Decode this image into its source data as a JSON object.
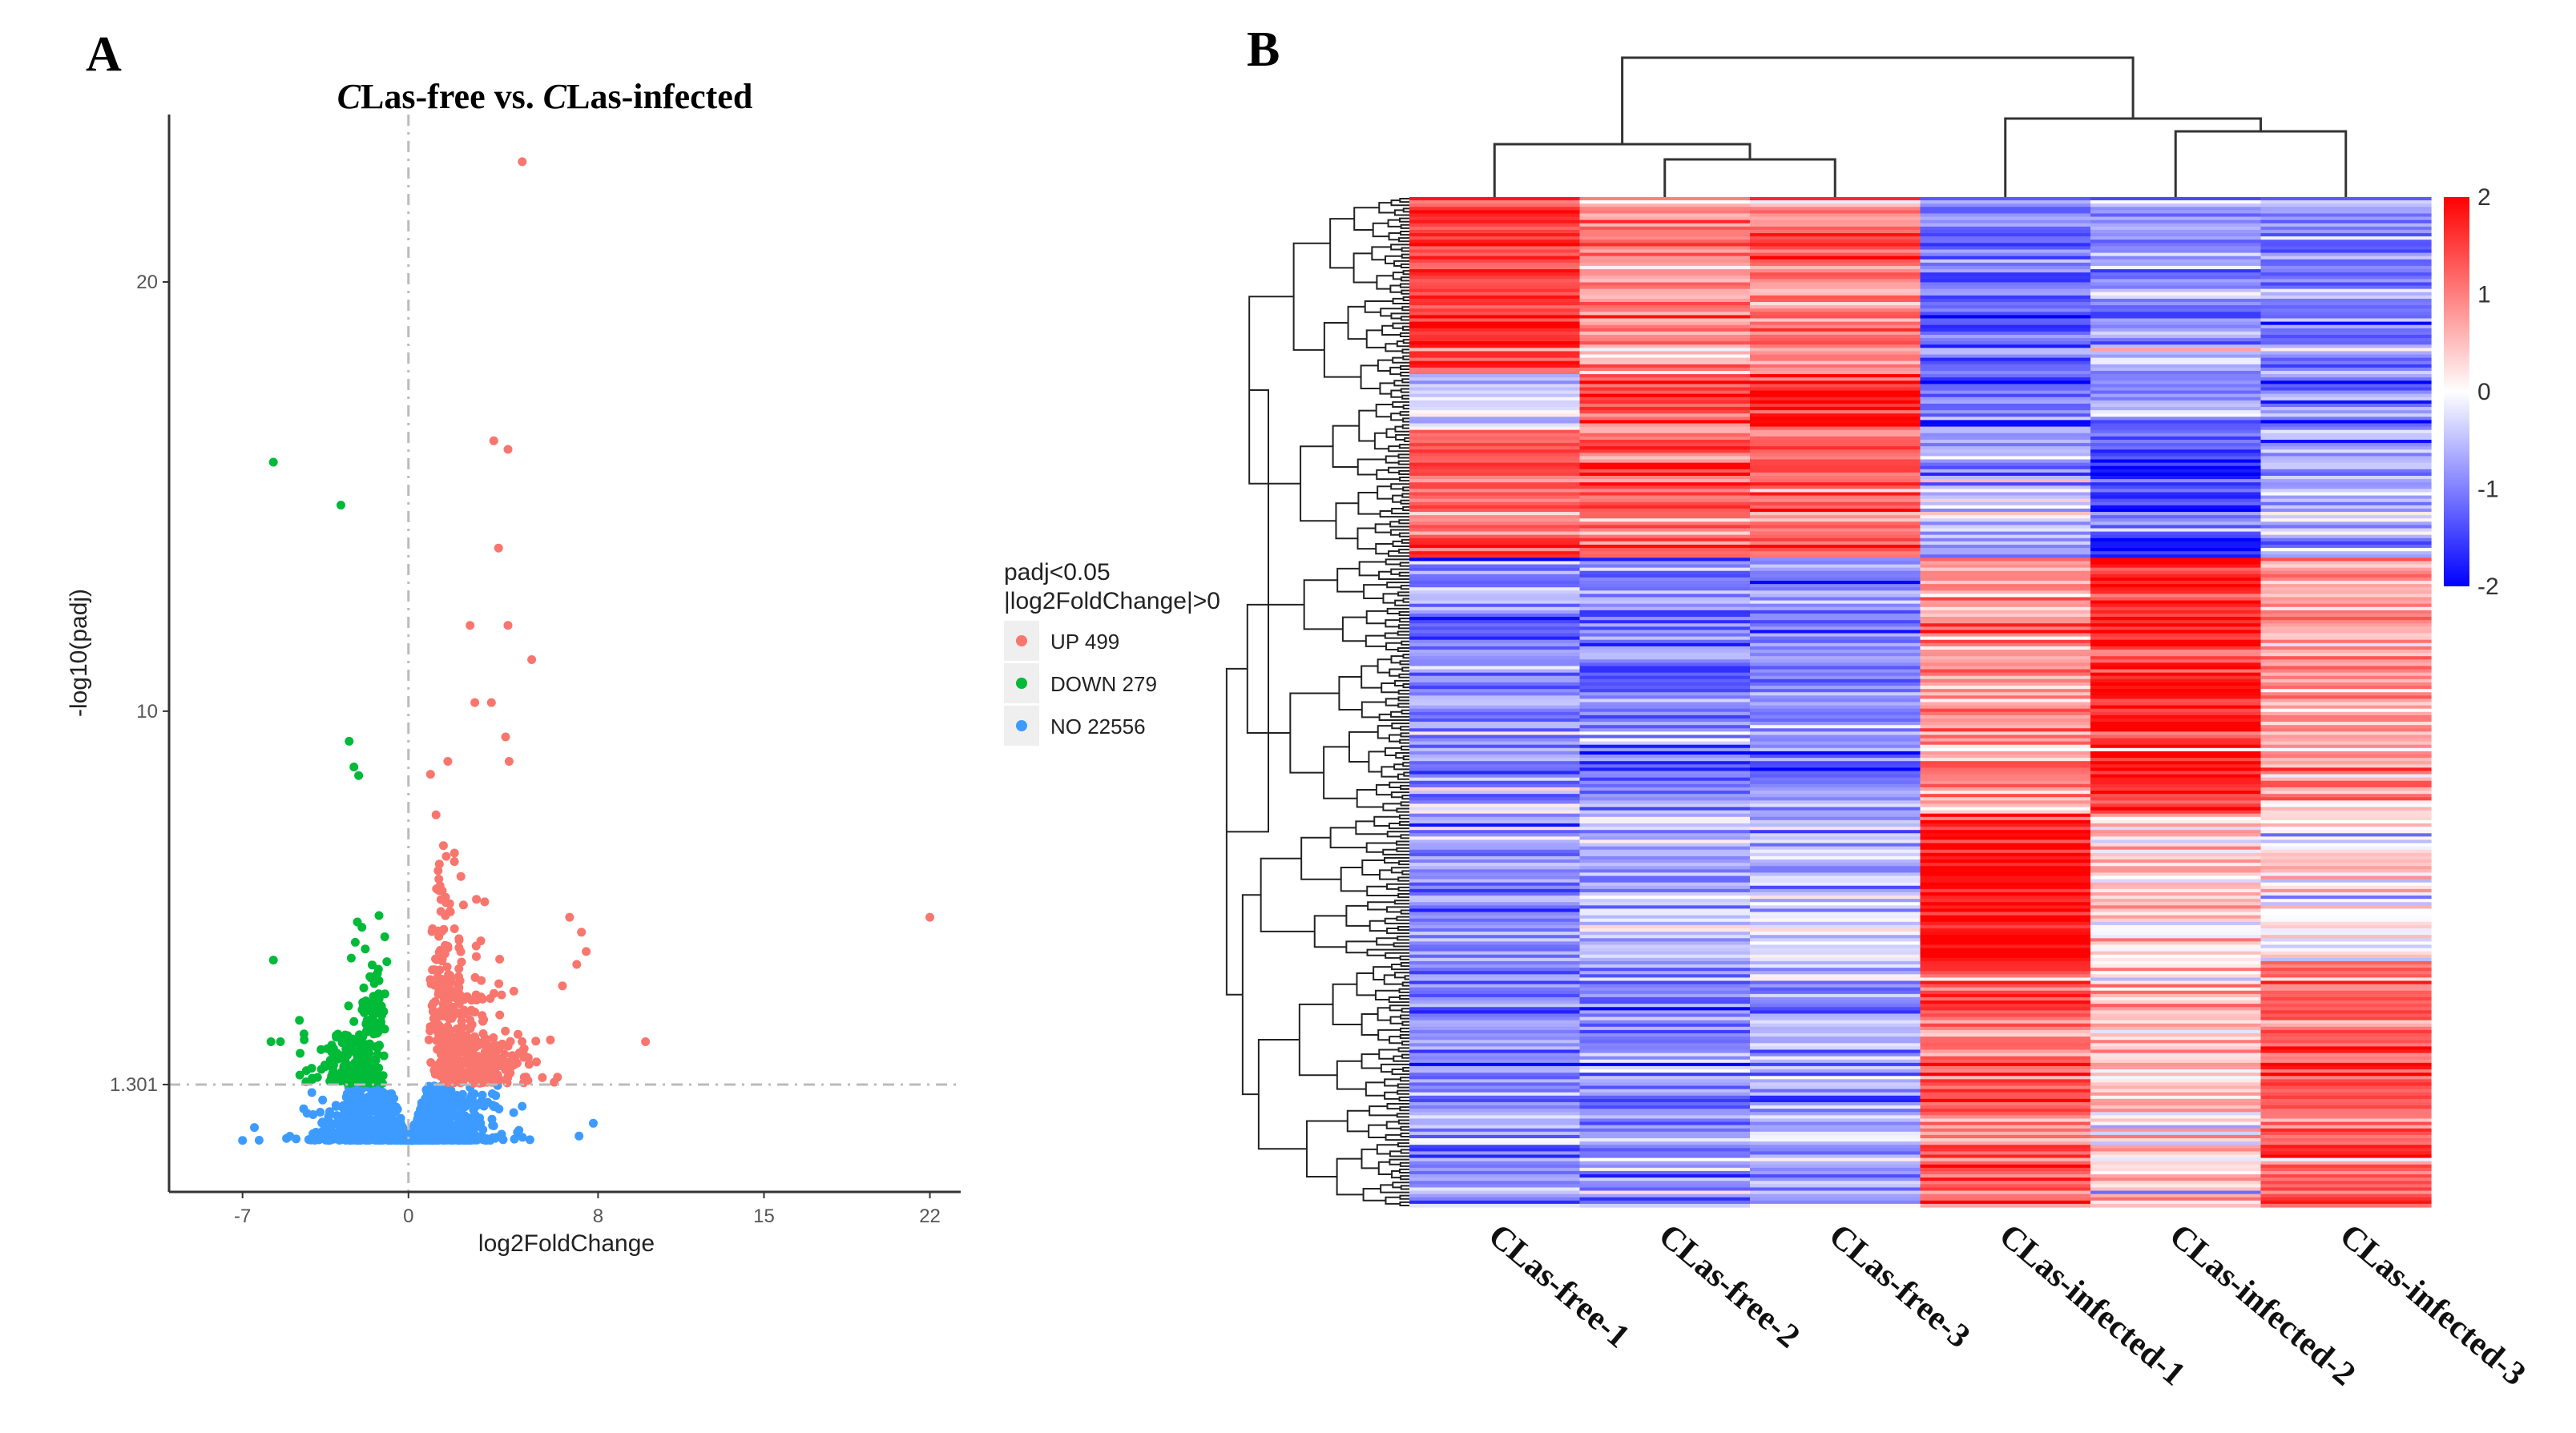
{
  "chart_data": [
    {
      "type": "scatter",
      "panel_label": "A",
      "title": "CLas-free vs. CLas-infected",
      "xlabel": "log2FoldChange",
      "ylabel": "-log10(padj)",
      "xlim": [
        -10.1,
        23.3
      ],
      "ylim": [
        -1.2,
        23.9
      ],
      "x_ticks": [
        -7,
        0,
        8,
        15,
        22
      ],
      "x_tick_labels": [
        "-7",
        "0",
        "8",
        "15",
        "22"
      ],
      "y_ticks": [
        1.301,
        10,
        20
      ],
      "y_tick_labels": [
        "1.301",
        "10",
        "20"
      ],
      "threshold_lines": {
        "x": 0,
        "y": 1.301
      },
      "grid": false,
      "legend": {
        "placement": "right",
        "title_line1": "padj<0.05",
        "title_line2": "|log2FoldChange|>0",
        "entries": [
          {
            "key": "up",
            "label": "UP 499",
            "count": 499,
            "color": "#F8766D"
          },
          {
            "key": "down",
            "label": "DOWN 279",
            "count": 279,
            "color": "#00BA38"
          },
          {
            "key": "no",
            "label": "NO 22556",
            "count": 22556,
            "color": "#3D9BFF"
          }
        ]
      },
      "outlier_points": [
        {
          "cls": "up",
          "x": 4.8,
          "y": 22.8
        },
        {
          "cls": "up",
          "x": 3.6,
          "y": 16.3
        },
        {
          "cls": "up",
          "x": 4.2,
          "y": 16.1
        },
        {
          "cls": "up",
          "x": 3.8,
          "y": 13.8
        },
        {
          "cls": "up",
          "x": 2.6,
          "y": 12.0
        },
        {
          "cls": "up",
          "x": 4.2,
          "y": 12.0
        },
        {
          "cls": "up",
          "x": 5.2,
          "y": 11.2
        },
        {
          "cls": "up",
          "x": 22.0,
          "y": 5.2
        },
        {
          "cls": "up",
          "x": 10.0,
          "y": 2.3
        },
        {
          "cls": "up",
          "x": 6.8,
          "y": 5.2
        },
        {
          "cls": "up",
          "x": 7.3,
          "y": 4.85
        },
        {
          "cls": "up",
          "x": 7.5,
          "y": 4.4
        },
        {
          "cls": "up",
          "x": 7.1,
          "y": 4.1
        },
        {
          "cls": "up",
          "x": 6.5,
          "y": 3.6
        },
        {
          "cls": "up",
          "x": 2.8,
          "y": 10.2
        },
        {
          "cls": "up",
          "x": 3.5,
          "y": 10.2
        },
        {
          "cls": "up",
          "x": 4.1,
          "y": 9.4
        },
        {
          "cls": "down",
          "x": -5.7,
          "y": 15.8
        },
        {
          "cls": "down",
          "x": -2.85,
          "y": 14.8
        },
        {
          "cls": "down",
          "x": -2.5,
          "y": 9.3
        },
        {
          "cls": "down",
          "x": -2.3,
          "y": 8.7
        },
        {
          "cls": "down",
          "x": -2.1,
          "y": 8.5
        },
        {
          "cls": "down",
          "x": -5.7,
          "y": 4.2
        },
        {
          "cls": "down",
          "x": -5.8,
          "y": 2.3
        },
        {
          "cls": "down",
          "x": -5.4,
          "y": 2.3
        },
        {
          "cls": "down",
          "x": -4.6,
          "y": 2.8
        },
        {
          "cls": "no",
          "x": -7.0,
          "y": 0.0
        },
        {
          "cls": "no",
          "x": -6.5,
          "y": 0.3
        },
        {
          "cls": "no",
          "x": 7.8,
          "y": 0.4
        },
        {
          "cls": "no",
          "x": 7.2,
          "y": 0.1
        }
      ]
    },
    {
      "type": "heatmap",
      "panel_label": "B",
      "columns": [
        "CLas-free-1",
        "CLas-free-2",
        "CLas-free-3",
        "CLas-infected-1",
        "CLas-infected-2",
        "CLas-infected-3"
      ],
      "column_dendrogram": "((CLas-free-1,(CLas-free-2,CLas-free-3)),(CLas-infected-1,(CLas-infected-2,CLas-infected-3)))",
      "color_scale": {
        "min": -2,
        "max": 2,
        "low": "#0000FF",
        "mid": "#FFFFFF",
        "high": "#FF0000",
        "ticks": [
          2,
          1,
          0,
          -1,
          -2
        ],
        "tick_labels": [
          "2",
          "1",
          "0",
          "-1",
          "-2"
        ]
      },
      "row_clusters": [
        {
          "rows": 54,
          "means": [
            1.6,
            0.9,
            1.0,
            -1.2,
            -0.8,
            -1.0
          ]
        },
        {
          "rows": 17,
          "means": [
            -0.2,
            1.3,
            1.7,
            -1.0,
            -0.9,
            -1.1
          ]
        },
        {
          "rows": 39,
          "means": [
            1.2,
            1.1,
            1.2,
            -0.6,
            -1.5,
            -0.6
          ]
        },
        {
          "rows": 78,
          "means": [
            -0.8,
            -1.0,
            -0.9,
            0.8,
            1.7,
            0.7
          ]
        },
        {
          "rows": 45,
          "means": [
            -0.9,
            -0.6,
            -0.5,
            2.0,
            0.4,
            0.1
          ]
        },
        {
          "rows": 75,
          "means": [
            -0.9,
            -1.0,
            -0.7,
            1.3,
            0.4,
            1.3
          ]
        }
      ]
    }
  ]
}
